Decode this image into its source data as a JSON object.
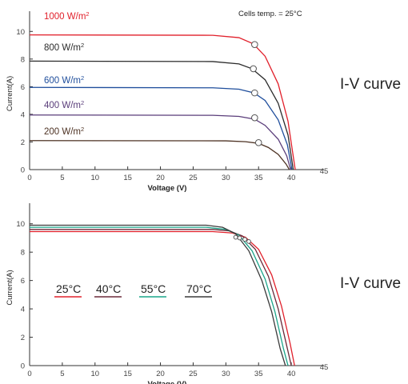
{
  "chart_data": [
    {
      "type": "line",
      "title": "I-V curve",
      "xlabel": "Voltage  (V)",
      "ylabel": "Current(A)",
      "xlim": [
        0,
        45
      ],
      "ylim": [
        0,
        11
      ],
      "xticks": [
        0,
        5,
        10,
        15,
        20,
        25,
        30,
        35,
        40,
        45
      ],
      "yticks": [
        0,
        2,
        4,
        6,
        8,
        10
      ],
      "annotation": "Cells temp. = 25°C",
      "grid": false,
      "legend": "inline labels above each curve",
      "series": [
        {
          "name": "1000 W/m²",
          "label_main": "1000 W/m",
          "label_sup": "2",
          "color": "#e1202b",
          "points": [
            [
              0,
              9.75
            ],
            [
              28,
              9.72
            ],
            [
              32,
              9.55
            ],
            [
              34.2,
              9.1
            ],
            [
              36,
              8.2
            ],
            [
              38,
              6.2
            ],
            [
              39.5,
              3.5
            ],
            [
              40.6,
              0
            ]
          ]
        },
        {
          "name": "800 W/m²",
          "label_main": "800 W/m",
          "label_sup": "2",
          "color": "#2b2b2b",
          "points": [
            [
              0,
              7.85
            ],
            [
              28,
              7.82
            ],
            [
              32,
              7.65
            ],
            [
              34,
              7.3
            ],
            [
              36,
              6.5
            ],
            [
              38,
              4.8
            ],
            [
              39.5,
              2.5
            ],
            [
              40.3,
              0
            ]
          ]
        },
        {
          "name": "600 W/m²",
          "label_main": "600 W/m",
          "label_sup": "2",
          "color": "#1f4e9c",
          "points": [
            [
              0,
              5.95
            ],
            [
              28,
              5.92
            ],
            [
              32,
              5.82
            ],
            [
              34.3,
              5.55
            ],
            [
              36,
              5.0
            ],
            [
              38,
              3.6
            ],
            [
              39.4,
              1.8
            ],
            [
              40.1,
              0
            ]
          ]
        },
        {
          "name": "400 W/m²",
          "label_main": "400 W/m",
          "label_sup": "2",
          "color": "#5a3d7a",
          "points": [
            [
              0,
              3.95
            ],
            [
              28,
              3.93
            ],
            [
              32,
              3.85
            ],
            [
              34.4,
              3.65
            ],
            [
              36,
              3.2
            ],
            [
              38,
              2.2
            ],
            [
              39.3,
              1.0
            ],
            [
              39.9,
              0
            ]
          ]
        },
        {
          "name": "200 W/m²",
          "label_main": "200 W/m",
          "label_sup": "2",
          "color": "#4d3223",
          "points": [
            [
              0,
              2.1
            ],
            [
              30,
              2.08
            ],
            [
              33,
              2.02
            ],
            [
              35,
              1.9
            ],
            [
              36.5,
              1.6
            ],
            [
              38,
              1.1
            ],
            [
              39.2,
              0.4
            ],
            [
              39.7,
              0
            ]
          ]
        }
      ],
      "markers": [
        [
          34.4,
          9.05
        ],
        [
          34.2,
          7.3
        ],
        [
          34.4,
          5.55
        ],
        [
          34.4,
          3.75
        ],
        [
          35.0,
          1.95
        ]
      ]
    },
    {
      "type": "line",
      "title": "I-V curve",
      "xlabel": "Voltage  (V)",
      "ylabel": "Current(A)",
      "xlim": [
        0,
        45
      ],
      "ylim": [
        0,
        11
      ],
      "xticks": [
        0,
        5,
        10,
        15,
        20,
        25,
        30,
        35,
        40,
        45
      ],
      "yticks": [
        0,
        2,
        4,
        6,
        8,
        10
      ],
      "grid": false,
      "legend": "left middle, horizontal row",
      "series": [
        {
          "name": "25°C",
          "color": "#e1202b",
          "points": [
            [
              0,
              9.45
            ],
            [
              28,
              9.45
            ],
            [
              31,
              9.35
            ],
            [
              33,
              9.05
            ],
            [
              35,
              8.2
            ],
            [
              37,
              6.4
            ],
            [
              38.5,
              4.2
            ],
            [
              39.8,
              1.6
            ],
            [
              40.5,
              0
            ]
          ]
        },
        {
          "name": "40°C",
          "color": "#6b2a3a",
          "points": [
            [
              0,
              9.6
            ],
            [
              28,
              9.6
            ],
            [
              30.5,
              9.5
            ],
            [
              32.5,
              9.15
            ],
            [
              34.5,
              8.2
            ],
            [
              36.5,
              6.3
            ],
            [
              38,
              4.0
            ],
            [
              39.3,
              1.4
            ],
            [
              40.0,
              0
            ]
          ]
        },
        {
          "name": "55°C",
          "color": "#1aa58a",
          "points": [
            [
              0,
              9.75
            ],
            [
              27,
              9.75
            ],
            [
              30,
              9.6
            ],
            [
              32,
              9.2
            ],
            [
              34,
              8.1
            ],
            [
              36,
              6.1
            ],
            [
              37.5,
              3.8
            ],
            [
              38.8,
              1.2
            ],
            [
              39.5,
              0
            ]
          ]
        },
        {
          "name": "70°C",
          "color": "#3a3a3a",
          "points": [
            [
              0,
              9.9
            ],
            [
              27,
              9.9
            ],
            [
              29.5,
              9.75
            ],
            [
              31.5,
              9.3
            ],
            [
              33.5,
              8.1
            ],
            [
              35.5,
              6.0
            ],
            [
              37,
              3.8
            ],
            [
              38.3,
              1.2
            ],
            [
              39.1,
              0
            ]
          ]
        }
      ],
      "markers": [
        [
          31.5,
          9.05
        ],
        [
          32.1,
          9.0
        ],
        [
          32.9,
          8.9
        ],
        [
          33.5,
          8.75
        ]
      ]
    }
  ]
}
